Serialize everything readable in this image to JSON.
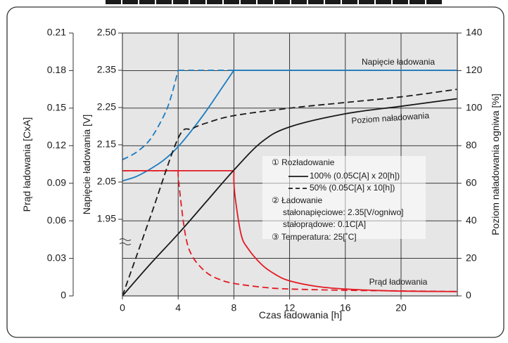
{
  "chart_data": {
    "type": "line",
    "title": "",
    "xlabel": "Czas ładowania [h]",
    "x_ticks": [
      "0",
      "4",
      "8",
      "12",
      "16",
      "20"
    ],
    "xlim": [
      0,
      24
    ],
    "axes": {
      "left_outer": {
        "label": "Prąd ładowania [CxA]",
        "ticks": [
          "0.21",
          "0.18",
          "0.15",
          "0.12",
          "0.09",
          "0.06",
          "0.03",
          "0"
        ],
        "range": [
          0,
          0.21
        ]
      },
      "left_inner": {
        "label": "Napięcie ładowania [V]",
        "ticks": [
          "2.50",
          "2.35",
          "2.25",
          "2.15",
          "2.05",
          "1.95"
        ],
        "range": [
          1.95,
          2.5
        ]
      },
      "right": {
        "label": "Poziom naładowania ogniwa [%]",
        "ticks": [
          "140",
          "120",
          "100",
          "80",
          "60",
          "40",
          "20",
          "0"
        ],
        "range": [
          0,
          140
        ]
      }
    },
    "grid": true,
    "colors": {
      "voltage": "#1a7cc1",
      "current": "#e31b23",
      "capacity": "#1a1a1a",
      "plot_bg": "#e6e6e6",
      "frame": "#444444"
    },
    "series": [
      {
        "name": "Napięcie ładowania",
        "legend_ref": "100%",
        "axis": "left_inner",
        "color": "#1a7cc1",
        "dash": "solid",
        "x": [
          0,
          1,
          2,
          3,
          4,
          5,
          6,
          7,
          8,
          24
        ],
        "y": [
          2.053,
          2.065,
          2.085,
          2.11,
          2.145,
          2.19,
          2.24,
          2.295,
          2.35,
          2.35
        ]
      },
      {
        "name": "",
        "legend_ref": "50%",
        "axis": "left_inner",
        "color": "#1a7cc1",
        "dash": "dashed",
        "x": [
          0,
          1,
          2,
          3,
          3.5,
          4,
          8
        ],
        "y": [
          2.11,
          2.13,
          2.165,
          2.23,
          2.28,
          2.35,
          2.35
        ]
      },
      {
        "name": "Prąd ładowania",
        "legend_ref": "100%",
        "axis": "left_outer",
        "color": "#e31b23",
        "dash": "solid",
        "x": [
          0,
          8,
          8.05,
          8.5,
          9,
          10,
          11,
          12,
          14,
          16,
          18,
          20,
          24
        ],
        "y": [
          0.1,
          0.1,
          0.083,
          0.05,
          0.038,
          0.025,
          0.017,
          0.012,
          0.0075,
          0.0055,
          0.0045,
          0.0038,
          0.0035
        ]
      },
      {
        "name": "",
        "legend_ref": "50%",
        "axis": "left_outer",
        "color": "#e31b23",
        "dash": "dashed",
        "x": [
          0,
          4,
          4.05,
          4.5,
          5,
          6,
          7,
          8,
          10,
          12,
          16,
          20,
          24
        ],
        "y": [
          0.1,
          0.1,
          0.09,
          0.05,
          0.032,
          0.019,
          0.013,
          0.01,
          0.007,
          0.0055,
          0.0045,
          0.004,
          0.0035
        ]
      },
      {
        "name": "Poziom naładowania",
        "legend_ref": "100%",
        "axis": "right",
        "color": "#1a1a1a",
        "dash": "solid",
        "x": [
          0,
          2,
          4,
          6,
          8,
          10,
          12,
          16,
          20,
          24
        ],
        "y": [
          0,
          17,
          33,
          50,
          67,
          82,
          90,
          97,
          101,
          105
        ]
      },
      {
        "name": "",
        "legend_ref": "50%",
        "axis": "right",
        "color": "#1a1a1a",
        "dash": "dashed",
        "x": [
          0,
          2,
          4,
          5,
          6,
          8,
          12,
          16,
          20,
          24
        ],
        "y": [
          0,
          42,
          84,
          89,
          92,
          96,
          100,
          103,
          106,
          110
        ]
      }
    ],
    "series_labels": [
      "Napięcie ładowania",
      "Poziom naładowania",
      "Prąd ładowania"
    ],
    "legend": {
      "placement": "center-right",
      "items": [
        "① Rozładowanie",
        "100% (0.05C[A] x 20[h])",
        "50% (0.05C[A] x 10[h])",
        "② Ładowanie",
        "stałonapięciowe: 2.35[V/ogniwo]",
        "stałoprądowe: 0.1C[A]",
        "③ Temperatura: 25[˚C]"
      ]
    }
  }
}
